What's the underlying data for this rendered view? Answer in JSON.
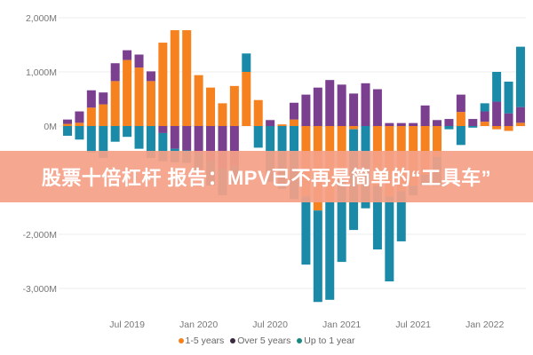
{
  "banner": {
    "text": "股票十倍杠杆 报告：MPV已不再是简单的“工具车”"
  },
  "chart_data": {
    "type": "bar",
    "stacked": true,
    "title": "",
    "xlabel": "",
    "ylabel": "",
    "ylim": [
      -3300,
      2100
    ],
    "yticks": [
      2000,
      1000,
      0,
      -2000,
      -3000
    ],
    "ytick_labels": [
      "2,000M",
      "1,000M",
      "0M",
      "-2,000M",
      "-3,000M"
    ],
    "xtick_labels": [
      {
        "label": "Jul 2019",
        "category": "2019-07"
      },
      {
        "label": "Jan 2020",
        "category": "2020-01"
      },
      {
        "label": "Jul 2020",
        "category": "2020-07"
      },
      {
        "label": "Jan 2021",
        "category": "2021-01"
      },
      {
        "label": "Jul 2021",
        "category": "2021-07"
      },
      {
        "label": "Jan 2022",
        "category": "2022-01"
      }
    ],
    "grid": true,
    "legend_position": "bottom",
    "categories": [
      "2019-02",
      "2019-03",
      "2019-04",
      "2019-05",
      "2019-06",
      "2019-07",
      "2019-08",
      "2019-09",
      "2019-10",
      "2019-11",
      "2019-12",
      "2020-01",
      "2020-02",
      "2020-03",
      "2020-04",
      "2020-05",
      "2020-06",
      "2020-07",
      "2020-08",
      "2020-09",
      "2020-10",
      "2020-11",
      "2020-12",
      "2021-01",
      "2021-02",
      "2021-03",
      "2021-04",
      "2021-05",
      "2021-06",
      "2021-07",
      "2021-08",
      "2021-09",
      "2021-10",
      "2021-11",
      "2021-12",
      "2022-01",
      "2022-02",
      "2022-03",
      "2022-04"
    ],
    "series": [
      {
        "name": "1-5 years",
        "color": "#f5821f",
        "values": [
          40,
          60,
          340,
          400,
          830,
          1220,
          1080,
          830,
          1540,
          1770,
          1770,
          940,
          710,
          420,
          740,
          1000,
          480,
          0,
          30,
          120,
          -1300,
          -1560,
          -1410,
          -1000,
          -60,
          0,
          -1100,
          -1300,
          -1200,
          -1100,
          -900,
          -570,
          0,
          260,
          0,
          80,
          -60,
          -90,
          60
        ]
      },
      {
        "name": "Over 5 years",
        "color": "#7b3f8f",
        "values": [
          80,
          210,
          320,
          220,
          330,
          180,
          240,
          180,
          -130,
          -420,
          -450,
          -500,
          -650,
          -790,
          -740,
          0,
          0,
          110,
          0,
          310,
          580,
          710,
          850,
          765,
          600,
          790,
          680,
          55,
          55,
          55,
          380,
          110,
          130,
          320,
          130,
          190,
          450,
          235,
          290
        ]
      },
      {
        "name": "Up to 1 year",
        "color": "#1a8aa8",
        "values": [
          -180,
          -250,
          -490,
          -590,
          -290,
          -200,
          -420,
          -590,
          -520,
          -250,
          -230,
          -300,
          -450,
          -490,
          -320,
          340,
          -400,
          -1030,
          -1160,
          -1350,
          -1260,
          -1690,
          -1800,
          -1510,
          -1860,
          -1520,
          -1180,
          -1570,
          -930,
          -180,
          -200,
          -540,
          -60,
          -350,
          -30,
          150,
          550,
          585,
          1115
        ]
      }
    ]
  }
}
